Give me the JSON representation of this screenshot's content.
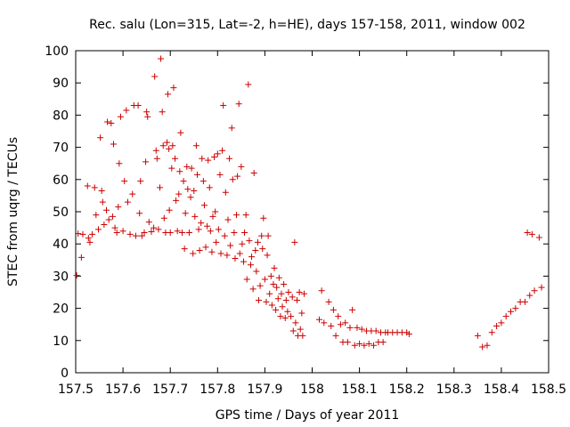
{
  "chart_data": {
    "type": "scatter",
    "title": "Rec. salu (Lon=315, Lat=-2, h=HE), days 157-158, 2011, window 002",
    "xlabel": "GPS time / Days of year 2011",
    "ylabel": "STEC from uqrg / TECUs",
    "xlim": [
      157.5,
      158.5
    ],
    "ylim": [
      0,
      100
    ],
    "xticks": [
      157.5,
      157.6,
      157.7,
      157.8,
      157.9,
      158,
      158.1,
      158.2,
      158.3,
      158.4,
      158.5
    ],
    "xtick_labels": [
      "157.5",
      "157.6",
      "157.7",
      "157.8",
      "157.9",
      "158",
      "158.1",
      "158.2",
      "158.3",
      "158.4",
      "158.5"
    ],
    "yticks": [
      0,
      10,
      20,
      30,
      40,
      50,
      60,
      70,
      80,
      90,
      100
    ],
    "ytick_labels": [
      "0",
      "10",
      "20",
      "30",
      "40",
      "50",
      "60",
      "70",
      "80",
      "90",
      "100"
    ],
    "marker": "+",
    "color": "#cc0000",
    "series": [
      {
        "name": "STEC",
        "points": [
          [
            157.502,
            30.2
          ],
          [
            157.505,
            43.2
          ],
          [
            157.512,
            35.8
          ],
          [
            157.515,
            43.0
          ],
          [
            157.525,
            58.0
          ],
          [
            157.527,
            41.8
          ],
          [
            157.53,
            40.5
          ],
          [
            157.535,
            43.0
          ],
          [
            157.54,
            57.5
          ],
          [
            157.543,
            49.0
          ],
          [
            157.548,
            44.5
          ],
          [
            157.552,
            73.0
          ],
          [
            157.555,
            56.5
          ],
          [
            157.557,
            53.0
          ],
          [
            157.56,
            46.0
          ],
          [
            157.565,
            50.5
          ],
          [
            157.567,
            77.9
          ],
          [
            157.57,
            47.5
          ],
          [
            157.575,
            77.5
          ],
          [
            157.578,
            48.5
          ],
          [
            157.58,
            71.0
          ],
          [
            157.583,
            45.0
          ],
          [
            157.587,
            43.5
          ],
          [
            157.59,
            51.5
          ],
          [
            157.592,
            65.0
          ],
          [
            157.595,
            79.5
          ],
          [
            157.6,
            44.0
          ],
          [
            157.603,
            59.5
          ],
          [
            157.607,
            81.5
          ],
          [
            157.61,
            53.0
          ],
          [
            157.615,
            43.0
          ],
          [
            157.62,
            55.5
          ],
          [
            157.623,
            83.0
          ],
          [
            157.627,
            42.5
          ],
          [
            157.632,
            83.0
          ],
          [
            157.635,
            49.5
          ],
          [
            157.637,
            59.5
          ],
          [
            157.64,
            42.5
          ],
          [
            157.645,
            43.5
          ],
          [
            157.648,
            65.5
          ],
          [
            157.65,
            81.0
          ],
          [
            157.652,
            79.5
          ],
          [
            157.655,
            46.8
          ],
          [
            157.66,
            43.8
          ],
          [
            157.665,
            45.0
          ],
          [
            157.667,
            92.0
          ],
          [
            157.67,
            69.0
          ],
          [
            157.672,
            66.5
          ],
          [
            157.675,
            44.5
          ],
          [
            157.678,
            57.5
          ],
          [
            157.68,
            97.5
          ],
          [
            157.683,
            81.0
          ],
          [
            157.685,
            70.5
          ],
          [
            157.687,
            48.0
          ],
          [
            157.69,
            43.5
          ],
          [
            157.693,
            71.5
          ],
          [
            157.695,
            86.5
          ],
          [
            157.697,
            69.5
          ],
          [
            157.698,
            50.5
          ],
          [
            157.7,
            43.5
          ],
          [
            157.703,
            63.5
          ],
          [
            157.705,
            70.5
          ],
          [
            157.707,
            88.5
          ],
          [
            157.71,
            66.5
          ],
          [
            157.712,
            53.5
          ],
          [
            157.715,
            44.0
          ],
          [
            157.718,
            55.5
          ],
          [
            157.72,
            62.5
          ],
          [
            157.722,
            74.5
          ],
          [
            157.725,
            43.5
          ],
          [
            157.728,
            59.5
          ],
          [
            157.73,
            38.5
          ],
          [
            157.732,
            49.5
          ],
          [
            157.735,
            64.0
          ],
          [
            157.737,
            57.0
          ],
          [
            157.74,
            43.5
          ],
          [
            157.743,
            54.5
          ],
          [
            157.745,
            63.5
          ],
          [
            157.748,
            37.0
          ],
          [
            157.75,
            56.5
          ],
          [
            157.752,
            48.5
          ],
          [
            157.755,
            70.5
          ],
          [
            157.757,
            61.5
          ],
          [
            157.76,
            44.5
          ],
          [
            157.762,
            38.0
          ],
          [
            157.765,
            46.5
          ],
          [
            157.767,
            66.5
          ],
          [
            157.77,
            59.5
          ],
          [
            157.772,
            52.0
          ],
          [
            157.775,
            39.0
          ],
          [
            157.778,
            45.5
          ],
          [
            157.78,
            66.0
          ],
          [
            157.783,
            57.5
          ],
          [
            157.785,
            44.0
          ],
          [
            157.788,
            37.5
          ],
          [
            157.79,
            48.5
          ],
          [
            157.793,
            67.0
          ],
          [
            157.795,
            50.0
          ],
          [
            157.797,
            40.5
          ],
          [
            157.8,
            68.0
          ],
          [
            157.802,
            44.5
          ],
          [
            157.805,
            61.5
          ],
          [
            157.807,
            37.0
          ],
          [
            157.81,
            69.0
          ],
          [
            157.812,
            83.0
          ],
          [
            157.815,
            42.5
          ],
          [
            157.817,
            56.0
          ],
          [
            157.82,
            36.5
          ],
          [
            157.822,
            47.5
          ],
          [
            157.825,
            66.5
          ],
          [
            157.827,
            39.5
          ],
          [
            157.83,
            76.0
          ],
          [
            157.832,
            60.0
          ],
          [
            157.835,
            43.5
          ],
          [
            157.837,
            35.5
          ],
          [
            157.84,
            49.0
          ],
          [
            157.842,
            61.0
          ],
          [
            157.845,
            83.5
          ],
          [
            157.847,
            37.0
          ],
          [
            157.85,
            64.0
          ],
          [
            157.852,
            40.0
          ],
          [
            157.855,
            34.5
          ],
          [
            157.857,
            43.5
          ],
          [
            157.86,
            49.0
          ],
          [
            157.862,
            29.0
          ],
          [
            157.865,
            89.5
          ],
          [
            157.867,
            41.0
          ],
          [
            157.87,
            33.5
          ],
          [
            157.872,
            36.0
          ],
          [
            157.875,
            26.0
          ],
          [
            157.877,
            62.0
          ],
          [
            157.88,
            38.0
          ],
          [
            157.882,
            31.5
          ],
          [
            157.885,
            40.5
          ],
          [
            157.887,
            22.5
          ],
          [
            157.89,
            27.0
          ],
          [
            157.893,
            42.5
          ],
          [
            157.895,
            38.5
          ],
          [
            157.897,
            48.0
          ],
          [
            157.9,
            29.0
          ],
          [
            157.903,
            22.0
          ],
          [
            157.905,
            36.5
          ],
          [
            157.907,
            42.5
          ],
          [
            157.91,
            24.5
          ],
          [
            157.913,
            30.0
          ],
          [
            157.915,
            21.0
          ],
          [
            157.918,
            27.5
          ],
          [
            157.92,
            32.5
          ],
          [
            157.923,
            19.5
          ],
          [
            157.925,
            26.5
          ],
          [
            157.928,
            23.0
          ],
          [
            157.93,
            29.5
          ],
          [
            157.933,
            17.5
          ],
          [
            157.935,
            24.5
          ],
          [
            157.937,
            20.5
          ],
          [
            157.94,
            27.5
          ],
          [
            157.943,
            17.0
          ],
          [
            157.945,
            22.5
          ],
          [
            157.948,
            19.0
          ],
          [
            157.95,
            25.0
          ],
          [
            157.955,
            17.5
          ],
          [
            157.958,
            23.5
          ],
          [
            157.96,
            13.0
          ],
          [
            157.963,
            40.5
          ],
          [
            157.965,
            15.5
          ],
          [
            157.968,
            22.5
          ],
          [
            157.97,
            11.5
          ],
          [
            157.973,
            25.0
          ],
          [
            157.975,
            13.5
          ],
          [
            157.978,
            18.5
          ],
          [
            157.98,
            11.5
          ],
          [
            157.983,
            24.5
          ],
          [
            158.015,
            16.5
          ],
          [
            158.02,
            25.5
          ],
          [
            158.025,
            15.5
          ],
          [
            158.035,
            22.0
          ],
          [
            158.04,
            14.5
          ],
          [
            158.045,
            19.5
          ],
          [
            158.05,
            11.5
          ],
          [
            158.055,
            17.5
          ],
          [
            158.06,
            15.0
          ],
          [
            158.065,
            9.5
          ],
          [
            158.07,
            15.5
          ],
          [
            158.075,
            9.5
          ],
          [
            158.08,
            14.0
          ],
          [
            158.085,
            19.5
          ],
          [
            158.09,
            8.5
          ],
          [
            158.095,
            14.0
          ],
          [
            158.1,
            9.0
          ],
          [
            158.105,
            13.5
          ],
          [
            158.11,
            8.5
          ],
          [
            158.115,
            13.0
          ],
          [
            158.12,
            9.0
          ],
          [
            158.125,
            13.0
          ],
          [
            158.13,
            8.5
          ],
          [
            158.135,
            13.0
          ],
          [
            158.14,
            9.5
          ],
          [
            158.145,
            12.5
          ],
          [
            158.15,
            9.5
          ],
          [
            158.155,
            12.5
          ],
          [
            158.16,
            12.5
          ],
          [
            158.17,
            12.5
          ],
          [
            158.18,
            12.5
          ],
          [
            158.19,
            12.5
          ],
          [
            158.2,
            12.5
          ],
          [
            158.205,
            12.0
          ],
          [
            158.35,
            11.5
          ],
          [
            158.36,
            8.0
          ],
          [
            158.37,
            8.5
          ],
          [
            158.38,
            12.5
          ],
          [
            158.39,
            14.5
          ],
          [
            158.4,
            15.5
          ],
          [
            158.41,
            17.5
          ],
          [
            158.42,
            19.0
          ],
          [
            158.43,
            20.0
          ],
          [
            158.44,
            22.0
          ],
          [
            158.45,
            22.0
          ],
          [
            158.455,
            43.5
          ],
          [
            158.46,
            24.0
          ],
          [
            158.465,
            43.0
          ],
          [
            158.47,
            25.5
          ],
          [
            158.48,
            42.0
          ],
          [
            158.485,
            26.5
          ]
        ]
      }
    ]
  }
}
